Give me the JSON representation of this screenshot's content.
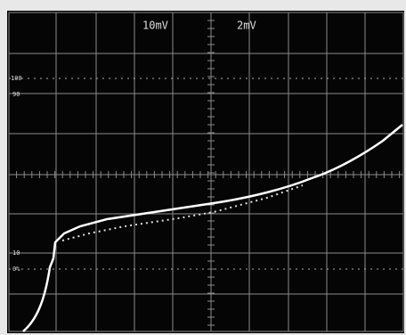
{
  "channel_labels": [
    "10mV",
    "2mV"
  ],
  "percent_markers": [
    "100",
    "90",
    "10",
    "0%"
  ]
}
